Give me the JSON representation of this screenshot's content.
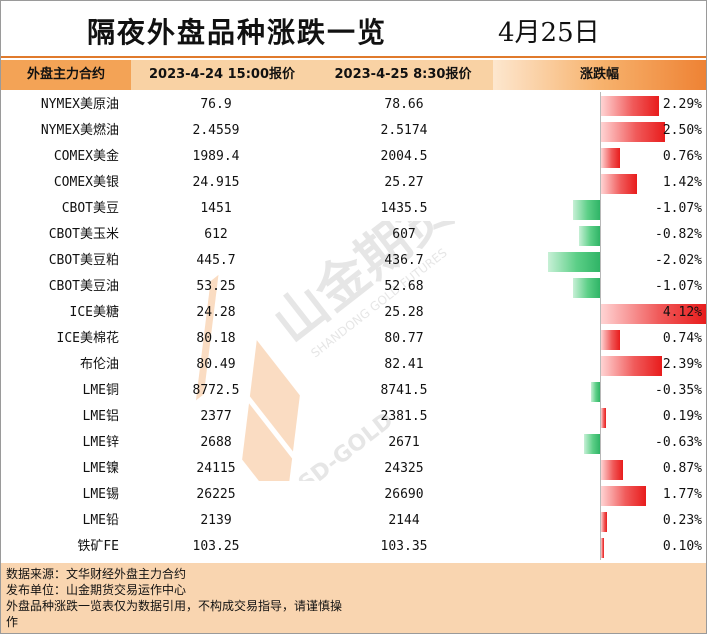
{
  "title": "隔夜外盘品种涨跌一览",
  "date": "4月25日",
  "header": {
    "name": "外盘主力合约",
    "price1": "2023-4-24 15:00报价",
    "price2": "2023-4-25 8:30报价",
    "change": "涨跌幅"
  },
  "colors": {
    "up": "#e81c1c",
    "down": "#2fb466",
    "accent": "#ee8234"
  },
  "rows": [
    {
      "name": "NYMEX美原油",
      "p1": "76.9",
      "p2": "78.66",
      "pct": "2.29%",
      "value": 2.29
    },
    {
      "name": "NYMEX美燃油",
      "p1": "2.4559",
      "p2": "2.5174",
      "pct": "2.50%",
      "value": 2.5
    },
    {
      "name": "COMEX美金",
      "p1": "1989.4",
      "p2": "2004.5",
      "pct": "0.76%",
      "value": 0.76
    },
    {
      "name": "COMEX美银",
      "p1": "24.915",
      "p2": "25.27",
      "pct": "1.42%",
      "value": 1.42
    },
    {
      "name": "CBOT美豆",
      "p1": "1451",
      "p2": "1435.5",
      "pct": "-1.07%",
      "value": -1.07
    },
    {
      "name": "CBOT美玉米",
      "p1": "612",
      "p2": "607",
      "pct": "-0.82%",
      "value": -0.82
    },
    {
      "name": "CBOT美豆粕",
      "p1": "445.7",
      "p2": "436.7",
      "pct": "-2.02%",
      "value": -2.02
    },
    {
      "name": "CBOT美豆油",
      "p1": "53.25",
      "p2": "52.68",
      "pct": "-1.07%",
      "value": -1.07
    },
    {
      "name": "ICE美糖",
      "p1": "24.28",
      "p2": "25.28",
      "pct": "4.12%",
      "value": 4.12
    },
    {
      "name": "ICE美棉花",
      "p1": "80.18",
      "p2": "80.77",
      "pct": "0.74%",
      "value": 0.74
    },
    {
      "name": "布伦油",
      "p1": "80.49",
      "p2": "82.41",
      "pct": "2.39%",
      "value": 2.39
    },
    {
      "name": "LME铜",
      "p1": "8772.5",
      "p2": "8741.5",
      "pct": "-0.35%",
      "value": -0.35
    },
    {
      "name": "LME铝",
      "p1": "2377",
      "p2": "2381.5",
      "pct": "0.19%",
      "value": 0.19
    },
    {
      "name": "LME锌",
      "p1": "2688",
      "p2": "2671",
      "pct": "-0.63%",
      "value": -0.63
    },
    {
      "name": "LME镍",
      "p1": "24115",
      "p2": "24325",
      "pct": "0.87%",
      "value": 0.87
    },
    {
      "name": "LME锡",
      "p1": "26225",
      "p2": "26690",
      "pct": "1.77%",
      "value": 1.77
    },
    {
      "name": "LME铅",
      "p1": "2139",
      "p2": "2144",
      "pct": "0.23%",
      "value": 0.23
    },
    {
      "name": "铁矿FE",
      "p1": "103.25",
      "p2": "103.35",
      "pct": "0.10%",
      "value": 0.1
    }
  ],
  "watermark": {
    "brand": "山金期货",
    "english": "SHANDONG GOLD FUTURES",
    "short": "SD-GOLD"
  },
  "footer": [
    "数据来源：文华财经外盘主力合约",
    "发布单位：山金期货交易运作中心",
    "外盘品种涨跌一览表仅为数据引用，不构成交易指导，请谨慎操",
    "作"
  ]
}
